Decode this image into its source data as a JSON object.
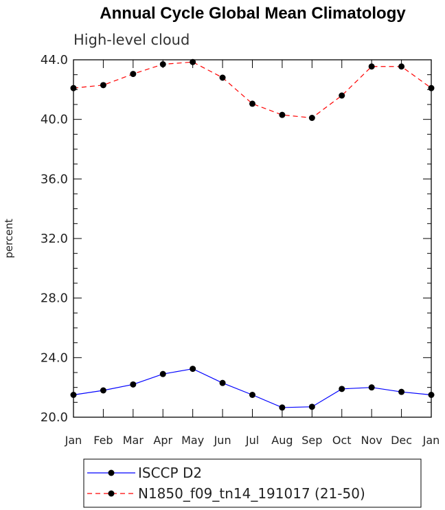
{
  "chart_data": {
    "type": "line",
    "title": "Annual Cycle Global Mean Climatology",
    "subtitle": "High-level cloud",
    "ylabel": "percent",
    "xlabel": "",
    "categories": [
      "Jan",
      "Feb",
      "Mar",
      "Apr",
      "May",
      "Jun",
      "Jul",
      "Aug",
      "Sep",
      "Oct",
      "Nov",
      "Dec",
      "Jan"
    ],
    "ylim": [
      20.0,
      44.0
    ],
    "yticks": [
      "20.0",
      "24.0",
      "28.0",
      "32.0",
      "36.0",
      "40.0",
      "44.0"
    ],
    "grid": false,
    "legend_position": "bottom-center",
    "series": [
      {
        "name": "ISCCP D2",
        "color": "#0000ff",
        "line_style": "solid",
        "marker": "filled-circle",
        "values": [
          21.5,
          21.8,
          22.2,
          22.9,
          23.25,
          22.3,
          21.5,
          20.65,
          20.7,
          21.9,
          22.0,
          21.7,
          21.5
        ]
      },
      {
        "name": "N1850_f09_tn14_191017 (21-50)",
        "color": "#ff0000",
        "line_style": "dashed",
        "marker": "filled-circle",
        "values": [
          42.1,
          42.3,
          43.05,
          43.7,
          43.85,
          42.8,
          41.05,
          40.3,
          40.1,
          41.6,
          43.55,
          43.55,
          42.1
        ]
      }
    ]
  }
}
